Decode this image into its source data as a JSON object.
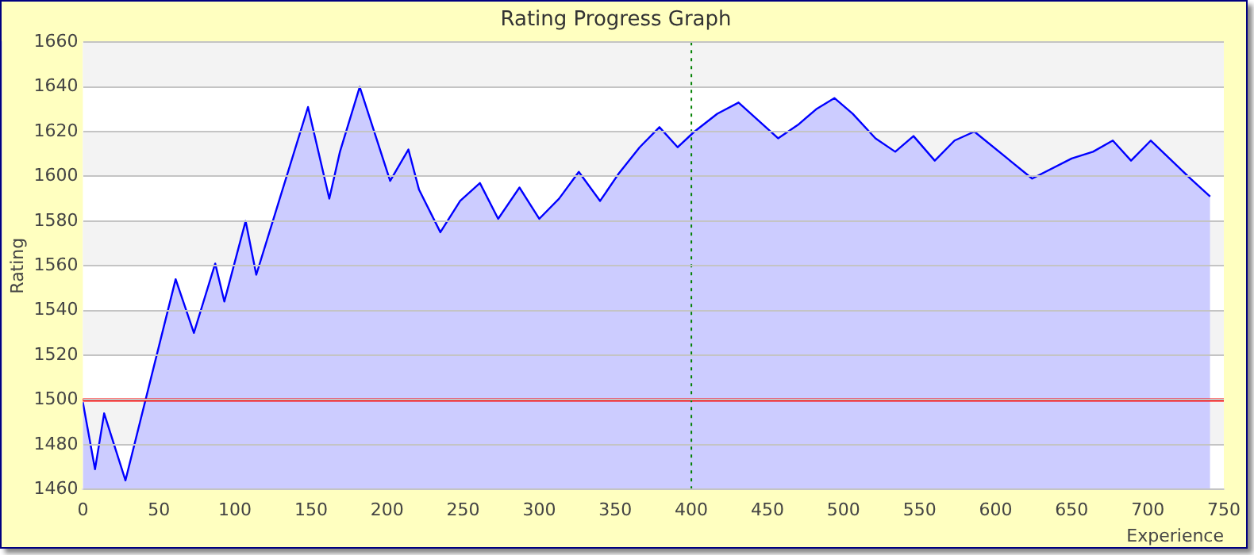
{
  "chart_data": {
    "type": "area",
    "title": "Rating Progress Graph",
    "xlabel": "Experience",
    "ylabel": "Rating",
    "x": [
      0,
      8,
      14,
      28,
      61,
      73,
      87,
      93,
      107,
      114,
      148,
      162,
      169,
      182,
      202,
      214,
      221,
      235,
      248,
      261,
      273,
      287,
      300,
      313,
      326,
      340,
      352,
      366,
      379,
      391,
      402,
      417,
      431,
      457,
      470,
      482,
      494,
      506,
      521,
      534,
      546,
      560,
      573,
      586,
      624,
      650,
      664,
      677,
      689,
      702,
      728,
      741
    ],
    "series": [
      {
        "color": "#0000ff",
        "values": [
          1499,
          1469,
          1494,
          1464,
          1554,
          1530,
          1561,
          1544,
          1580,
          1556,
          1631,
          1590,
          1611,
          1640,
          1598,
          1612,
          1594,
          1575,
          1589,
          1597,
          1581,
          1595,
          1581,
          1590,
          1602,
          1589,
          1601,
          1613,
          1622,
          1613,
          1620,
          1628,
          1633,
          1617,
          1623,
          1630,
          1635,
          1628,
          1617,
          1611,
          1618,
          1607,
          1616,
          1620,
          1599,
          1608,
          1611,
          1616,
          1607,
          1616,
          1599,
          1591
        ]
      }
    ],
    "xlim": [
      0,
      750
    ],
    "xticks": [
      0,
      50,
      100,
      150,
      200,
      250,
      300,
      350,
      400,
      450,
      500,
      550,
      600,
      650,
      700,
      750
    ],
    "ylim": [
      1460,
      1660
    ],
    "yticks": [
      1460,
      1480,
      1500,
      1520,
      1540,
      1560,
      1580,
      1600,
      1620,
      1640,
      1660
    ],
    "grid": "y",
    "legend": false,
    "marker": "none",
    "line_style": "solid",
    "ref_lines": [
      {
        "axis": "y",
        "value": 1500,
        "color": "#ff0000",
        "line_style": "solid"
      },
      {
        "axis": "x",
        "value": 400,
        "color": "#008000",
        "line_style": "dotted"
      }
    ]
  }
}
